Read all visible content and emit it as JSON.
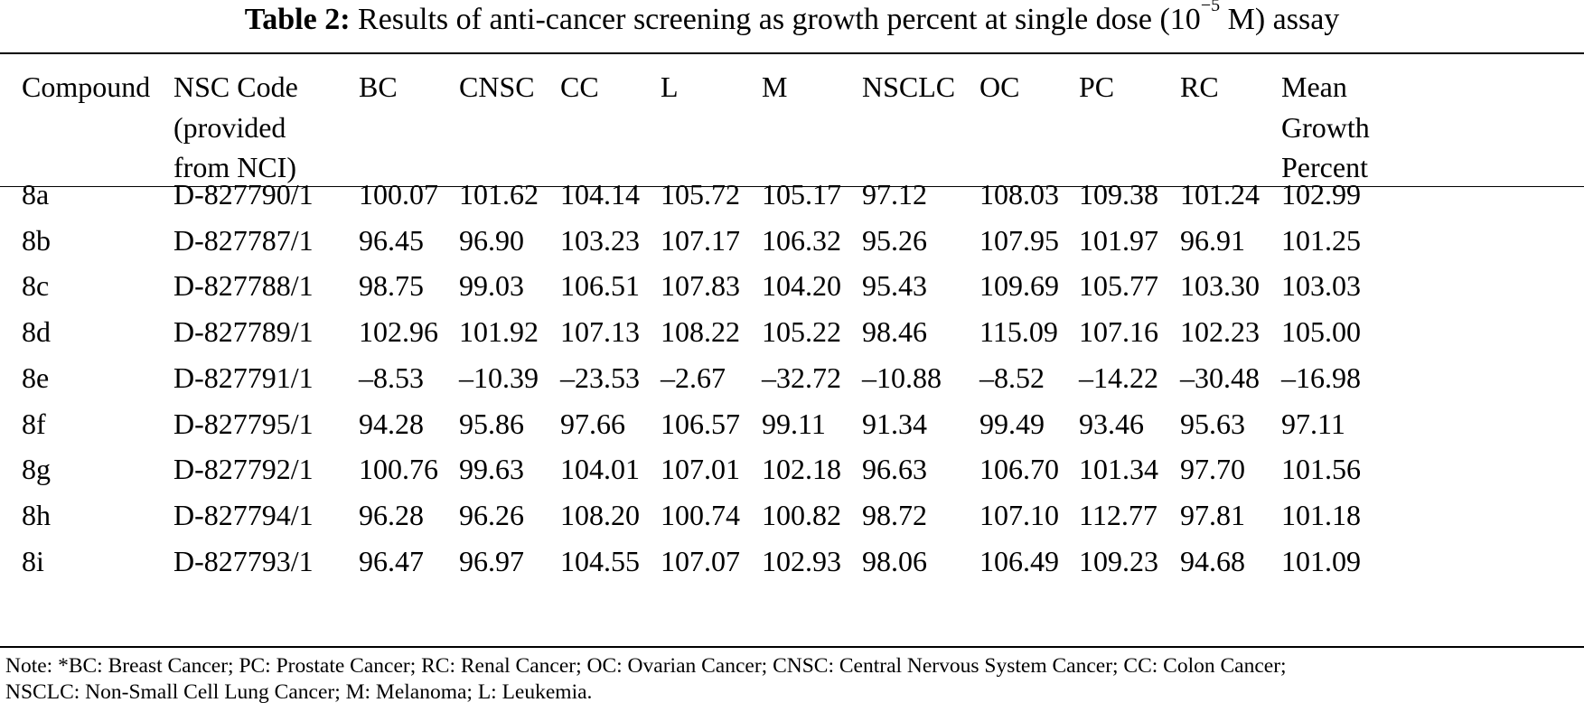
{
  "table": {
    "caption_label": "Table 2:",
    "caption_pre": "Results of anti-cancer screening as growth percent at single dose (10",
    "caption_sup": "−5",
    "caption_post": " M) assay",
    "headers": [
      "Compound",
      "NSC Code\n(provided\nfrom NCI)",
      "BC",
      "CNSC",
      "CC",
      "L",
      "M",
      "NSCLC",
      "OC",
      "PC",
      "RC",
      "Mean\nGrowth\nPercent"
    ],
    "rows": [
      [
        "8a",
        "D-827790/1",
        "100.07",
        "101.62",
        "104.14",
        "105.72",
        "105.17",
        "97.12",
        "108.03",
        "109.38",
        "101.24",
        "102.99"
      ],
      [
        "8b",
        "D-827787/1",
        "96.45",
        "96.90",
        "103.23",
        "107.17",
        "106.32",
        "95.26",
        "107.95",
        "101.97",
        "96.91",
        "101.25"
      ],
      [
        "8c",
        "D-827788/1",
        "98.75",
        "99.03",
        "106.51",
        "107.83",
        "104.20",
        "95.43",
        "109.69",
        "105.77",
        "103.30",
        "103.03"
      ],
      [
        "8d",
        "D-827789/1",
        "102.96",
        "101.92",
        "107.13",
        "108.22",
        "105.22",
        "98.46",
        "115.09",
        "107.16",
        "102.23",
        "105.00"
      ],
      [
        "8e",
        "D-827791/1",
        "–8.53",
        "–10.39",
        "–23.53",
        "–2.67",
        "–32.72",
        "–10.88",
        "–8.52",
        "–14.22",
        "–30.48",
        "–16.98"
      ],
      [
        "8f",
        "D-827795/1",
        "94.28",
        "95.86",
        "97.66",
        "106.57",
        "99.11",
        "91.34",
        "99.49",
        "93.46",
        "95.63",
        "97.11"
      ],
      [
        "8g",
        "D-827792/1",
        "100.76",
        "99.63",
        "104.01",
        "107.01",
        "102.18",
        "96.63",
        "106.70",
        "101.34",
        "97.70",
        "101.56"
      ],
      [
        "8h",
        "D-827794/1",
        "96.28",
        "96.26",
        "108.20",
        "100.74",
        "100.82",
        "98.72",
        "107.10",
        "112.77",
        "97.81",
        "101.18"
      ],
      [
        "8i",
        "D-827793/1",
        "96.47",
        "96.97",
        "104.55",
        "107.07",
        "102.93",
        "98.06",
        "106.49",
        "109.23",
        "94.68",
        "101.09"
      ]
    ],
    "note_line1": "Note: *BC: Breast Cancer; PC: Prostate Cancer; RC: Renal Cancer; OC: Ovarian Cancer; CNSC: Central Nervous System Cancer; CC: Colon Cancer;",
    "note_line2": "NSCLC: Non-Small Cell Lung Cancer; M: Melanoma; L: Leukemia."
  }
}
